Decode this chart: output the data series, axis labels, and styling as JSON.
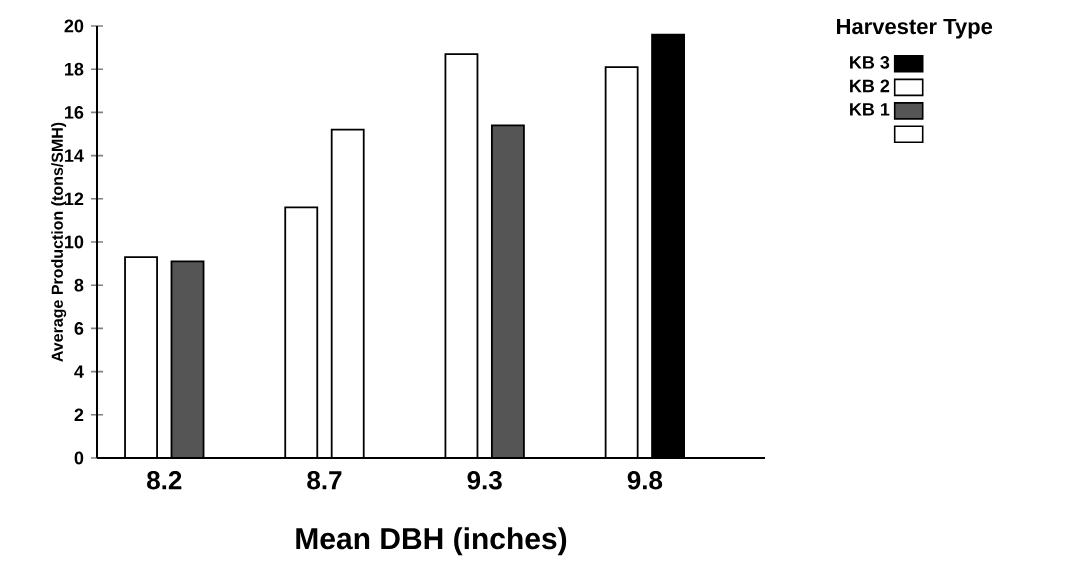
{
  "chart_data": {
    "type": "bar",
    "xlabel": "Mean DBH (inches)",
    "ylabel": "Average Production (tons/SMH)",
    "legend_title": "Harvester Type",
    "categories": [
      "8.2",
      "8.7",
      "9.3",
      "9.8"
    ],
    "series": [
      {
        "color": "#ffffff",
        "values": [
          9.3,
          11.6,
          18.7,
          18.1
        ]
      },
      {
        "name": "KB 1",
        "color": "#555555",
        "values": [
          9.1,
          null,
          15.4,
          null
        ]
      },
      {
        "name": "KB 2",
        "color": "#ffffff",
        "values": [
          null,
          15.2,
          null,
          null
        ]
      },
      {
        "name": "KB 3",
        "color": "#000000",
        "values": [
          null,
          null,
          null,
          19.6
        ]
      }
    ],
    "ylim": [
      0,
      20
    ],
    "yticks": [
      0,
      2,
      4,
      6,
      8,
      10,
      12,
      14,
      16,
      18,
      20
    ],
    "grid": false,
    "legend": "top right"
  }
}
